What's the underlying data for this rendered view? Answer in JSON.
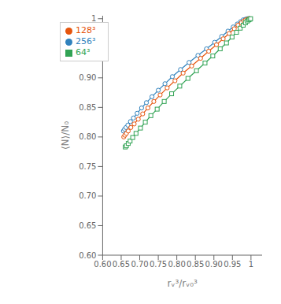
{
  "chart_data": {
    "type": "line",
    "xlabel": "rᵥ³/rᵥ₀³",
    "ylabel": "⟨N⟩/N₀",
    "xlim": [
      0.6,
      1.03
    ],
    "ylim": [
      0.6,
      1.005
    ],
    "xticks": [
      {
        "value": 0.6,
        "label": "0.60"
      },
      0.65,
      {
        "value": 0.7,
        "label": "0.70"
      },
      0.75,
      {
        "value": 0.8,
        "label": "0.80"
      },
      0.85,
      {
        "value": 0.9,
        "label": "0.90"
      },
      0.95,
      1
    ],
    "yticks": [
      {
        "value": 0.6,
        "label": "0.60"
      },
      0.65,
      {
        "value": 0.7,
        "label": "0.70"
      },
      0.75,
      {
        "value": 0.8,
        "label": "0.80"
      },
      0.85,
      {
        "value": 0.9,
        "label": "0.90"
      },
      0.95,
      1
    ],
    "grid": false,
    "legend": "upper left",
    "series": [
      {
        "name": "256³",
        "color": "#3182bd",
        "marker": "circle",
        "line_style": "solid",
        "x": [
          0.656,
          0.659,
          0.663,
          0.668,
          0.675,
          0.683,
          0.693,
          0.705,
          0.718,
          0.733,
          0.75,
          0.768,
          0.788,
          0.81,
          0.833,
          0.857,
          0.88,
          0.902,
          0.921,
          0.938,
          0.952,
          0.963,
          0.972,
          0.979,
          0.985,
          0.99,
          0.994,
          0.997
        ],
        "values": [
          0.81,
          0.813,
          0.816,
          0.82,
          0.826,
          0.832,
          0.84,
          0.849,
          0.858,
          0.868,
          0.879,
          0.89,
          0.902,
          0.914,
          0.926,
          0.938,
          0.949,
          0.96,
          0.97,
          0.979,
          0.986,
          0.991,
          0.995,
          0.998,
          0.999,
          1.0,
          1.0,
          1.0
        ]
      },
      {
        "name": "128³",
        "color": "#e6550d",
        "marker": "circle",
        "line_style": "solid",
        "x": [
          0.657,
          0.66,
          0.664,
          0.669,
          0.676,
          0.685,
          0.696,
          0.708,
          0.722,
          0.738,
          0.755,
          0.774,
          0.795,
          0.817,
          0.84,
          0.864,
          0.886,
          0.907,
          0.925,
          0.941,
          0.955,
          0.965,
          0.974,
          0.981,
          0.986,
          0.991,
          0.994,
          0.997
        ],
        "values": [
          0.8,
          0.803,
          0.806,
          0.81,
          0.816,
          0.822,
          0.83,
          0.839,
          0.849,
          0.86,
          0.871,
          0.883,
          0.895,
          0.908,
          0.92,
          0.933,
          0.945,
          0.956,
          0.966,
          0.975,
          0.983,
          0.989,
          0.993,
          0.996,
          0.998,
          0.999,
          1.0,
          1.0
        ]
      },
      {
        "name": "64³",
        "color": "#31a354",
        "marker": "square",
        "line_style": "solid",
        "x": [
          0.661,
          0.664,
          0.669,
          0.674,
          0.681,
          0.69,
          0.702,
          0.715,
          0.73,
          0.747,
          0.766,
          0.786,
          0.808,
          0.83,
          0.853,
          0.876,
          0.897,
          0.917,
          0.934,
          0.949,
          0.961,
          0.971,
          0.979,
          0.985,
          0.99,
          0.994,
          0.997,
          0.999
        ],
        "values": [
          0.783,
          0.785,
          0.789,
          0.793,
          0.799,
          0.806,
          0.815,
          0.825,
          0.836,
          0.847,
          0.86,
          0.873,
          0.886,
          0.899,
          0.912,
          0.925,
          0.937,
          0.949,
          0.959,
          0.969,
          0.977,
          0.984,
          0.989,
          0.993,
          0.996,
          0.998,
          0.999,
          1.0
        ]
      }
    ]
  }
}
